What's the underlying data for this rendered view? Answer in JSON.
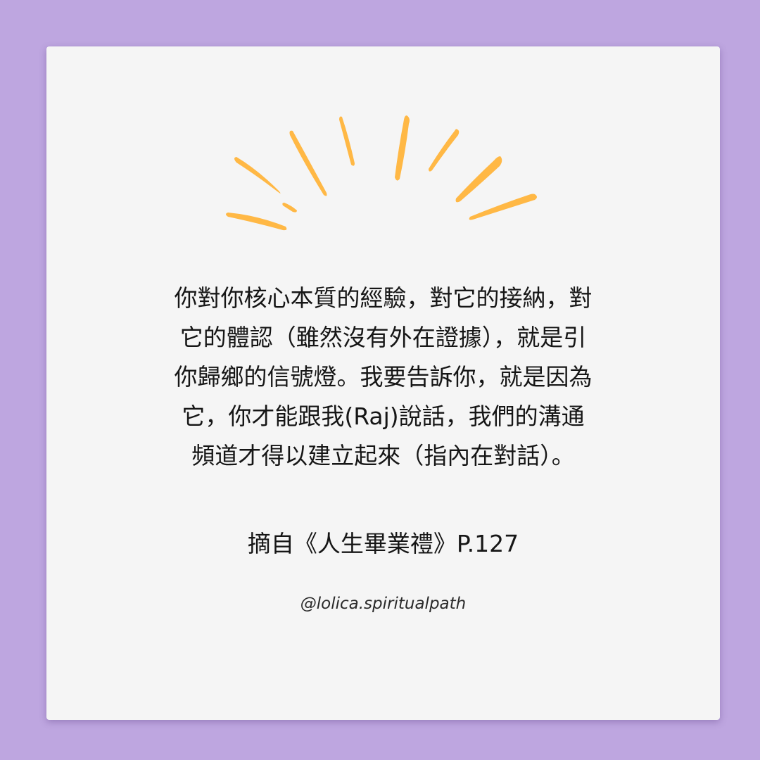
{
  "quote": {
    "lines": [
      "你對你核心本質的經驗，對它的接納，對",
      "它的體認（雖然沒有外在證據），就是引",
      "你歸鄉的信號燈。我要告訴你，就是因為",
      "它，你才能跟我(Raj)說話，我們的溝通",
      "頻道才得以建立起來（指內在對話）。"
    ]
  },
  "source": "摘自《人生畢業禮》P.127",
  "handle": "@lolica.spiritualpath",
  "colors": {
    "background": "#bea6e0",
    "card": "#f5f5f5",
    "accent": "#ffb845",
    "text": "#161616"
  },
  "decoration": {
    "icon": "sunburst-icon"
  }
}
